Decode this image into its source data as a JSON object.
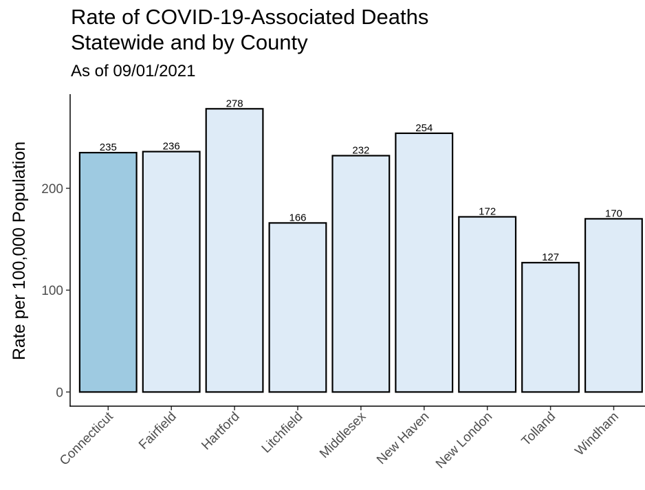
{
  "chart_data": {
    "type": "bar",
    "title_lines": [
      "Rate of COVID-19-Associated Deaths",
      "Statewide and by County"
    ],
    "subtitle": "As of 09/01/2021",
    "xlabel": "",
    "ylabel": "Rate per 100,000 Population",
    "categories": [
      "Connecticut",
      "Fairfield",
      "Hartford",
      "Litchfield",
      "Middlesex",
      "New Haven",
      "New London",
      "Tolland",
      "Windham"
    ],
    "values": [
      235,
      236,
      278,
      166,
      232,
      254,
      172,
      127,
      170
    ],
    "data_labels": [
      "235",
      "236",
      "278",
      "166",
      "232",
      "254",
      "172",
      "127",
      "170"
    ],
    "ylim": [
      -13.9,
      292.4
    ],
    "yticks": [
      0,
      100,
      200
    ],
    "ytick_labels": [
      "0",
      "100",
      "200"
    ],
    "grid": false,
    "legend": "none",
    "colors": {
      "statewide_fill": "#9ecae1",
      "county_fill": "#deebf7",
      "bar_outline": "#000000",
      "tick_text": "#4d4d4d"
    }
  }
}
